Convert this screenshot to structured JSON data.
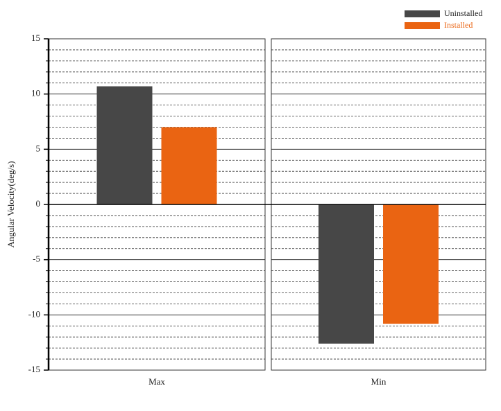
{
  "chart_data": {
    "type": "bar",
    "y_label": "Angular Velocity(deg/s)",
    "categories": [
      "Max",
      "Min"
    ],
    "series": [
      {
        "name": "Uninstalled",
        "color": "#474747",
        "values": [
          10.7,
          -12.6
        ]
      },
      {
        "name": "Installed",
        "color": "#ea6412",
        "values": [
          7.0,
          -10.8
        ]
      }
    ],
    "ylim": [
      -15,
      15
    ],
    "yticks": [
      -15,
      -10,
      -5,
      0,
      5,
      10,
      15
    ],
    "minor_yticks": [
      -14,
      -13,
      -12,
      -11,
      -9,
      -8,
      -7,
      -6,
      -4,
      -3,
      -2,
      -1,
      1,
      2,
      3,
      4,
      6,
      7,
      8,
      9,
      11,
      12,
      13,
      14
    ],
    "grid": true,
    "legend": "top-right"
  }
}
